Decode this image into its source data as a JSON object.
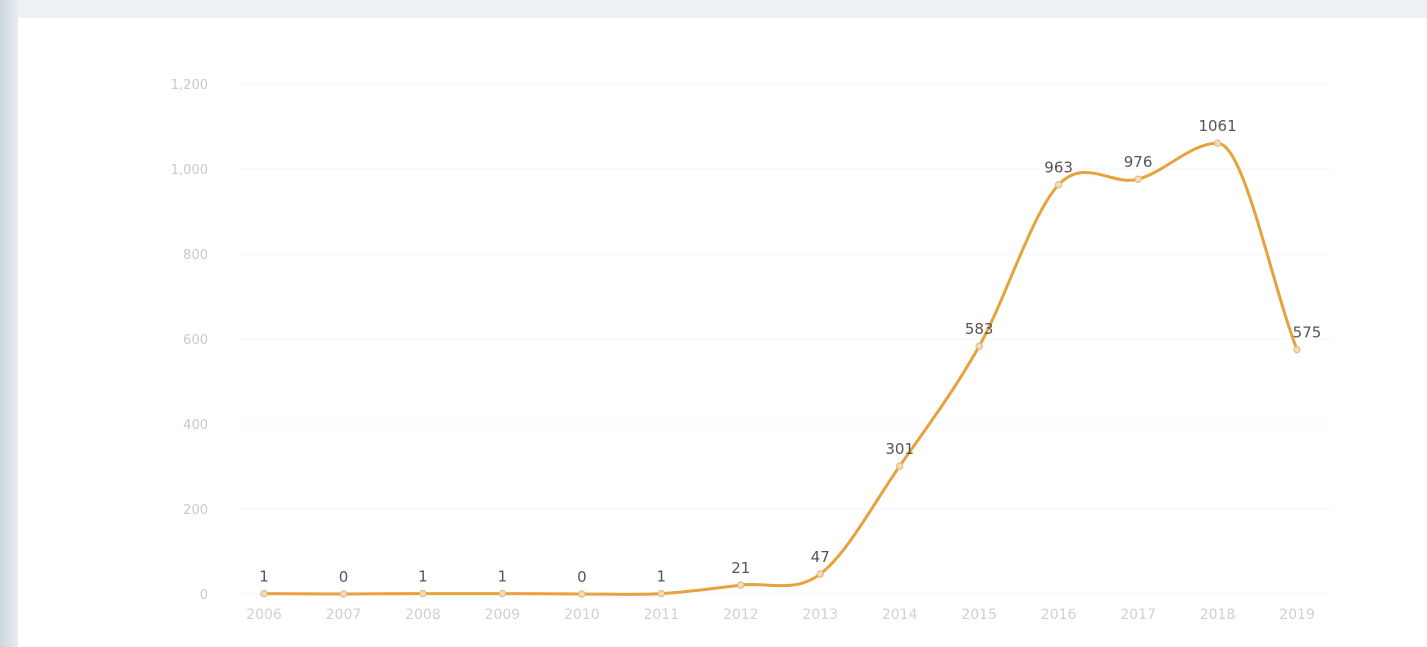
{
  "chart_data": {
    "type": "line",
    "smooth": true,
    "categories": [
      "2006",
      "2007",
      "2008",
      "2009",
      "2010",
      "2011",
      "2012",
      "2013",
      "2014",
      "2015",
      "2016",
      "2017",
      "2018",
      "2019"
    ],
    "values": [
      1,
      0,
      1,
      1,
      0,
      1,
      21,
      47,
      301,
      583,
      963,
      976,
      1061,
      575
    ],
    "data_labels": [
      "1",
      "0",
      "1",
      "1",
      "0",
      "1",
      "21",
      "47",
      "301",
      "583",
      "963",
      "976",
      "1061",
      "575"
    ],
    "y_ticks": [
      "0",
      "200",
      "400",
      "600",
      "800",
      "1,000",
      "1,200"
    ],
    "ylim": [
      0,
      1200
    ],
    "grid": true,
    "line_color": "#e8a23c",
    "marker_color": "#f2dcb3",
    "title": "",
    "xlabel": "",
    "ylabel": ""
  }
}
